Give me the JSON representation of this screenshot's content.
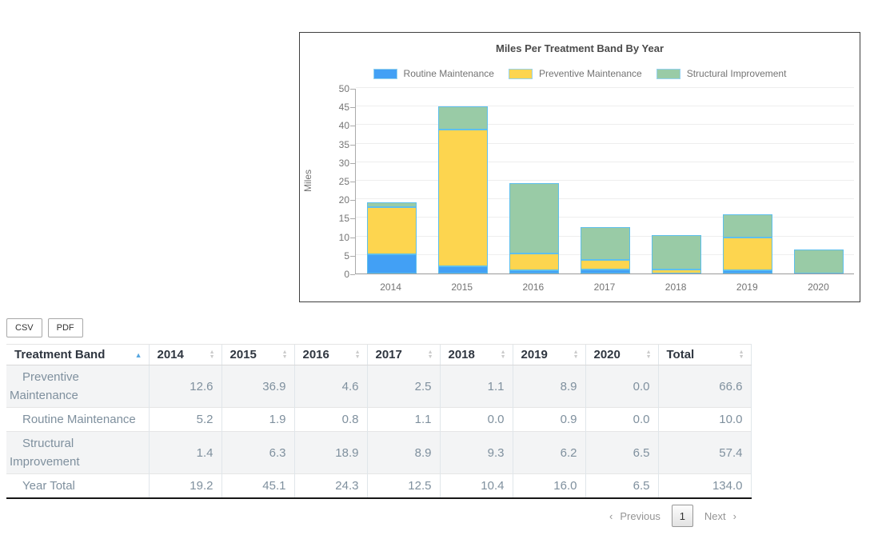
{
  "chart_data": {
    "type": "bar",
    "stacked": true,
    "title": "Miles Per Treatment Band By Year",
    "xlabel": "",
    "ylabel": "Miles",
    "categories": [
      "2014",
      "2015",
      "2016",
      "2017",
      "2018",
      "2019",
      "2020"
    ],
    "series": [
      {
        "name": "Routine Maintenance",
        "color": "#42a0f5",
        "values": [
          5.2,
          1.9,
          0.8,
          1.1,
          0.0,
          0.9,
          0.0
        ]
      },
      {
        "name": "Preventive Maintenance",
        "color": "#fdd54f",
        "values": [
          12.6,
          36.9,
          4.6,
          2.5,
          1.1,
          8.9,
          0.0
        ]
      },
      {
        "name": "Structural Improvement",
        "color": "#99cba6",
        "values": [
          1.4,
          6.3,
          18.9,
          8.9,
          9.3,
          6.2,
          6.5
        ]
      }
    ],
    "ylim": [
      0,
      50
    ],
    "ytick_step": 5,
    "bar_border_color": "#5ebfec",
    "legend_position": "top",
    "grid": true
  },
  "toolbar": {
    "csv_label": "CSV",
    "pdf_label": "PDF"
  },
  "table": {
    "columns": [
      "Treatment Band",
      "2014",
      "2015",
      "2016",
      "2017",
      "2018",
      "2019",
      "2020",
      "Total"
    ],
    "sorted_column": "Treatment Band",
    "sort_direction": "asc",
    "rows": [
      {
        "label": "Preventive Maintenance",
        "values": [
          "12.6",
          "36.9",
          "4.6",
          "2.5",
          "1.1",
          "8.9",
          "0.0",
          "66.6"
        ]
      },
      {
        "label": "Routine Maintenance",
        "values": [
          "5.2",
          "1.9",
          "0.8",
          "1.1",
          "0.0",
          "0.9",
          "0.0",
          "10.0"
        ]
      },
      {
        "label": "Structural Improvement",
        "values": [
          "1.4",
          "6.3",
          "18.9",
          "8.9",
          "9.3",
          "6.2",
          "6.5",
          "57.4"
        ]
      },
      {
        "label": "Year Total",
        "values": [
          "19.2",
          "45.1",
          "24.3",
          "12.5",
          "10.4",
          "16.0",
          "6.5",
          "134.0"
        ]
      }
    ]
  },
  "pagination": {
    "prev_arrow": "‹",
    "previous_label": "Previous",
    "page": "1",
    "next_arrow": "›",
    "next_label": "Next"
  }
}
